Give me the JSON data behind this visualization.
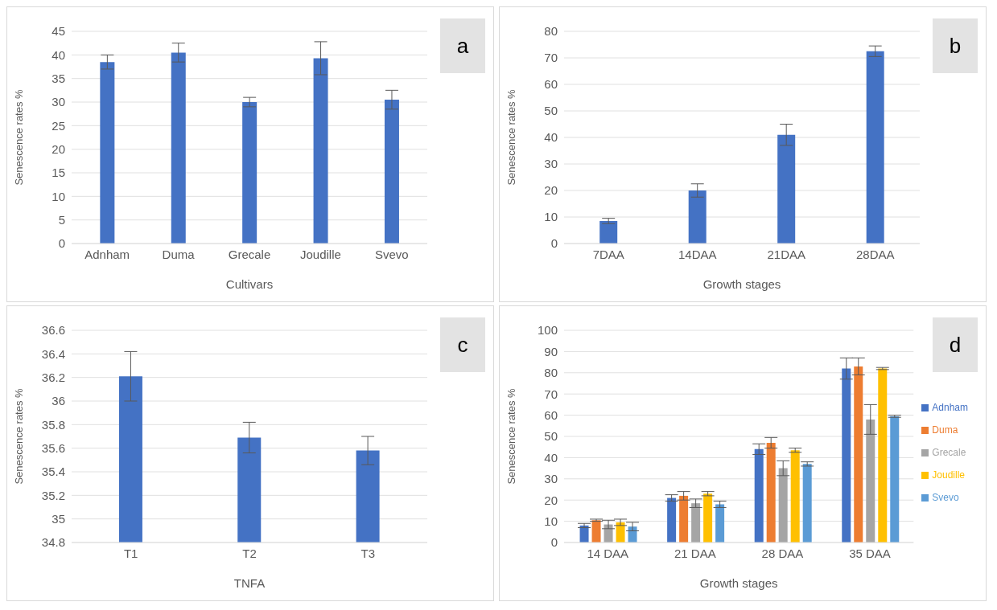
{
  "chart_data": [
    {
      "type": "bar",
      "annotations": [
        "a"
      ],
      "xlabel": "Cultivars",
      "ylabel": "Senescence rates %",
      "categories": [
        "Adnham",
        "Duma",
        "Grecale",
        "Joudille",
        "Svevo"
      ],
      "series": [
        {
          "color": "#4472c4",
          "values": [
            38.5,
            40.5,
            30,
            39.3,
            30.5
          ],
          "errors": [
            1.5,
            2,
            1,
            3.5,
            2
          ]
        }
      ],
      "ylim": [
        0,
        45
      ],
      "yticks": [
        0,
        5,
        10,
        15,
        20,
        25,
        30,
        35,
        40,
        45
      ],
      "grid": "y",
      "legend": false
    },
    {
      "type": "bar",
      "annotations": [
        "b"
      ],
      "xlabel": "Growth stages",
      "ylabel": "Senescence rates %",
      "categories": [
        "7DAA",
        "14DAA",
        "21DAA",
        "28DAA"
      ],
      "series": [
        {
          "color": "#4472c4",
          "values": [
            8.5,
            20,
            41,
            72.5
          ],
          "errors": [
            1,
            2.5,
            4,
            2
          ]
        }
      ],
      "ylim": [
        0,
        80
      ],
      "yticks": [
        0,
        10,
        20,
        30,
        40,
        50,
        60,
        70,
        80
      ],
      "grid": "y",
      "legend": false
    },
    {
      "type": "bar",
      "annotations": [
        "c"
      ],
      "xlabel": "TNFA",
      "ylabel": "Senescence rates %",
      "categories": [
        "T1",
        "T2",
        "T3"
      ],
      "series": [
        {
          "color": "#4472c4",
          "values": [
            36.21,
            35.69,
            35.58
          ],
          "errors": [
            0.21,
            0.13,
            0.12
          ]
        }
      ],
      "ylim": [
        34.8,
        36.6
      ],
      "yticks": [
        34.8,
        35,
        35.2,
        35.4,
        35.6,
        35.8,
        36,
        36.2,
        36.4,
        36.6
      ],
      "grid": "y",
      "legend": false
    },
    {
      "type": "bar",
      "annotations": [
        "d"
      ],
      "xlabel": "Growth stages",
      "ylabel": "Senescence rates %",
      "categories": [
        "14 DAA",
        "21 DAA",
        "28 DAA",
        "35 DAA"
      ],
      "series": [
        {
          "name": "Adnham",
          "color": "#4472c4",
          "values": [
            8,
            21,
            44,
            82
          ],
          "errors": [
            1,
            1.5,
            2.5,
            5
          ]
        },
        {
          "name": "Duma",
          "color": "#ed7d31",
          "values": [
            10.5,
            22,
            47,
            83
          ],
          "errors": [
            0.5,
            2,
            2.5,
            4
          ]
        },
        {
          "name": "Grecale",
          "color": "#a5a5a5",
          "values": [
            8.5,
            18.5,
            35,
            58
          ],
          "errors": [
            2,
            2,
            3.5,
            7
          ]
        },
        {
          "name": "Joudille",
          "color": "#ffc000",
          "values": [
            9.5,
            23,
            43.5,
            82
          ],
          "errors": [
            1.5,
            1,
            1,
            0.5
          ]
        },
        {
          "name": "Svevo",
          "color": "#5b9bd5",
          "values": [
            7.5,
            18,
            37,
            59.5
          ],
          "errors": [
            2,
            1.5,
            1,
            0.5
          ]
        }
      ],
      "ylim": [
        0,
        100
      ],
      "yticks": [
        0,
        10,
        20,
        30,
        40,
        50,
        60,
        70,
        80,
        90,
        100
      ],
      "grid": "y",
      "legend": "right"
    }
  ]
}
